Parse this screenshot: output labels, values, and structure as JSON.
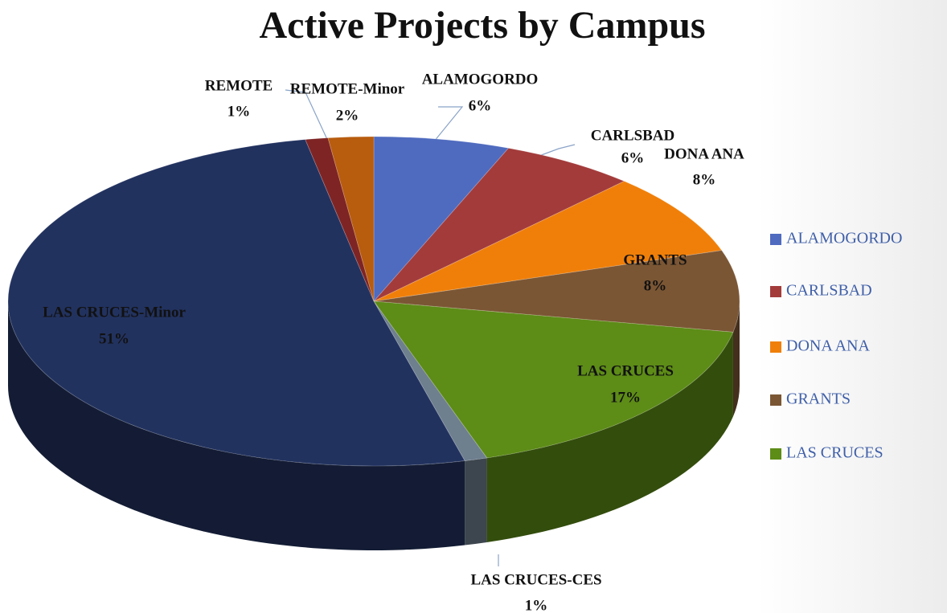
{
  "chart_data": {
    "type": "pie3d",
    "title": "Active Projects by Campus",
    "categories": [
      "ALAMOGORDO",
      "CARLSBAD",
      "DONA ANA",
      "GRANTS",
      "LAS CRUCES",
      "LAS CRUCES-CES",
      "LAS CRUCES-Minor",
      "REMOTE",
      "REMOTE-Minor"
    ],
    "values": [
      6,
      6,
      8,
      8,
      17,
      1,
      51,
      1,
      2
    ],
    "value_labels": [
      "6%",
      "6%",
      "8%",
      "8%",
      "17%",
      "1%",
      "51%",
      "1%",
      "2%"
    ],
    "colors": [
      "#4f6bbf",
      "#a33b3b",
      "#f07f09",
      "#7b5634",
      "#5d8c17",
      "#6e7f8e",
      "#22325f",
      "#7e2424",
      "#b85c0e"
    ],
    "legend": "right"
  }
}
